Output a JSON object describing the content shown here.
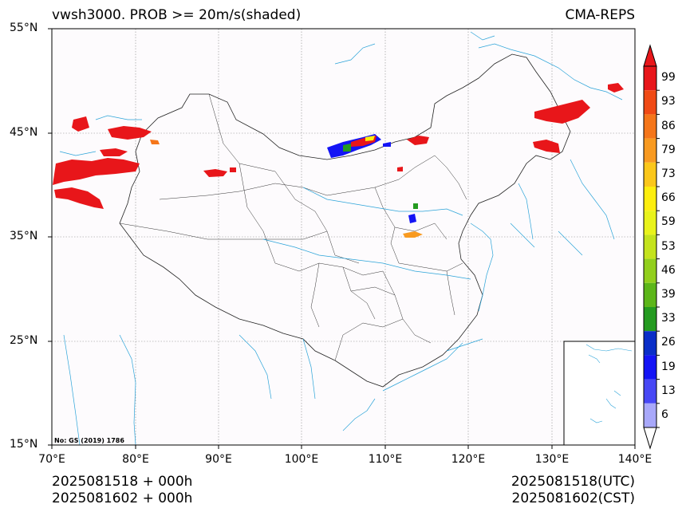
{
  "header": {
    "title": "vwsh3000. PROB >= 20m/s(shaded)",
    "model": "CMA-REPS"
  },
  "map": {
    "lat_labels": [
      "55°N",
      "45°N",
      "35°N",
      "25°N",
      "15°N"
    ],
    "lon_labels": [
      "70°E",
      "80°E",
      "90°E",
      "100°E",
      "110°E",
      "120°E",
      "130°E",
      "140°E"
    ],
    "extent": {
      "lon": [
        70,
        140
      ],
      "lat": [
        15,
        55
      ]
    },
    "gridlines": true,
    "inset": "South China Sea",
    "approval_no": "No: GS (2019) 1786"
  },
  "colorbar": {
    "levels": [
      "99",
      "93",
      "86",
      "79",
      "73",
      "66",
      "59",
      "53",
      "46",
      "39",
      "33",
      "26",
      "19",
      "13",
      "6"
    ],
    "colors": [
      "#e8161a",
      "#f04a15",
      "#f5761a",
      "#f89a20",
      "#fbc71a",
      "#fdee0e",
      "#e9f31b",
      "#c4e31d",
      "#92cf1c",
      "#5cb619",
      "#249b20",
      "#0a2ec8",
      "#1414f5",
      "#4848f5",
      "#a8a8fa"
    ],
    "over_color": "#e8161a",
    "under_color": "#ffffff"
  },
  "footer": {
    "init_1": "2025081518  +  000h",
    "init_2": "2025081602  +  000h",
    "valid_utc": "2025081518(UTC)",
    "valid_cst": "2025081602(CST)"
  }
}
